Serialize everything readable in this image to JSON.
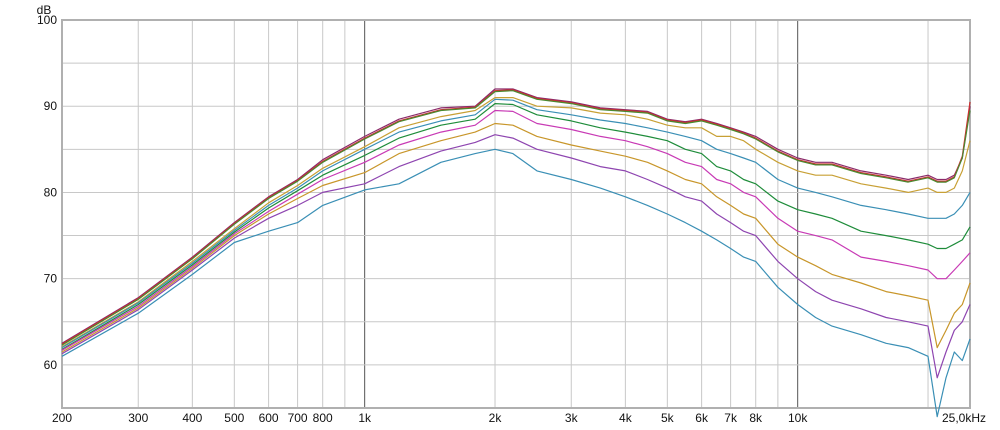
{
  "chart_data": {
    "type": "line",
    "title": "",
    "ylabel": "dB",
    "xlabel": "",
    "x_scale": "log",
    "xlim": [
      200,
      25000
    ],
    "ylim": [
      55,
      100
    ],
    "grid": true,
    "x_ticks": [
      {
        "value": 200,
        "label": "200"
      },
      {
        "value": 300,
        "label": "300"
      },
      {
        "value": 400,
        "label": "400"
      },
      {
        "value": 500,
        "label": "500"
      },
      {
        "value": 600,
        "label": "600"
      },
      {
        "value": 700,
        "label": "700"
      },
      {
        "value": 800,
        "label": "800"
      },
      {
        "value": 1000,
        "label": "1k"
      },
      {
        "value": 2000,
        "label": "2k"
      },
      {
        "value": 3000,
        "label": "3k"
      },
      {
        "value": 4000,
        "label": "4k"
      },
      {
        "value": 5000,
        "label": "5k"
      },
      {
        "value": 6000,
        "label": "6k"
      },
      {
        "value": 7000,
        "label": "7k"
      },
      {
        "value": 8000,
        "label": "8k"
      },
      {
        "value": 10000,
        "label": "10k"
      },
      {
        "value": 25000,
        "label": "25,0kHz"
      }
    ],
    "major_x_lines": [
      1000,
      10000
    ],
    "y_ticks": [
      {
        "value": 100,
        "label": "100"
      },
      {
        "value": 90,
        "label": "90"
      },
      {
        "value": 80,
        "label": "80"
      },
      {
        "value": 70,
        "label": "70"
      },
      {
        "value": 60,
        "label": "60"
      }
    ],
    "x": [
      200,
      300,
      400,
      500,
      600,
      700,
      800,
      1000,
      1200,
      1500,
      1800,
      2000,
      2200,
      2500,
      3000,
      3500,
      4000,
      4500,
      5000,
      5500,
      6000,
      6500,
      7000,
      7500,
      8000,
      9000,
      10000,
      11000,
      12000,
      14000,
      16000,
      18000,
      20000,
      21000,
      22000,
      23000,
      24000,
      25000
    ],
    "series": [
      {
        "color": "#8b2a6a",
        "values": [
          62.5,
          67.8,
          72.5,
          76.5,
          79.5,
          81.5,
          83.8,
          86.5,
          88.5,
          89.8,
          90.0,
          92.0,
          92.0,
          91.0,
          90.5,
          89.8,
          89.6,
          89.4,
          88.5,
          88.2,
          88.5,
          88.0,
          87.5,
          87.0,
          86.5,
          85.0,
          84.0,
          83.5,
          83.5,
          82.5,
          82.0,
          81.5,
          82.0,
          81.5,
          81.5,
          82.0,
          84.0,
          90.0
        ]
      },
      {
        "color": "#cc2f2f",
        "values": [
          62.4,
          67.7,
          72.4,
          76.4,
          79.4,
          81.4,
          83.6,
          86.3,
          88.3,
          89.6,
          89.9,
          91.8,
          91.9,
          90.9,
          90.4,
          89.7,
          89.5,
          89.3,
          88.4,
          88.1,
          88.4,
          87.9,
          87.4,
          86.9,
          86.3,
          84.8,
          83.8,
          83.3,
          83.3,
          82.3,
          81.8,
          81.3,
          81.8,
          81.3,
          81.3,
          81.8,
          84.2,
          90.5
        ]
      },
      {
        "color": "#4a8a30",
        "values": [
          62.3,
          67.6,
          72.3,
          76.3,
          79.3,
          81.3,
          83.5,
          86.2,
          88.2,
          89.5,
          89.8,
          91.7,
          91.8,
          90.8,
          90.3,
          89.6,
          89.4,
          89.2,
          88.3,
          88.0,
          88.3,
          87.8,
          87.3,
          86.8,
          86.2,
          84.7,
          83.7,
          83.2,
          83.2,
          82.2,
          81.7,
          81.2,
          81.7,
          81.2,
          81.2,
          81.7,
          84.0,
          89.5
        ]
      },
      {
        "color": "#c8a035",
        "values": [
          62.1,
          67.3,
          72.0,
          75.8,
          78.8,
          80.8,
          82.8,
          85.3,
          87.5,
          88.8,
          89.5,
          91.0,
          91.0,
          90.0,
          89.8,
          89.2,
          89.0,
          88.5,
          87.8,
          87.5,
          87.5,
          86.5,
          86.5,
          86.0,
          85.0,
          83.5,
          82.5,
          82.0,
          82.0,
          81.0,
          80.5,
          80.0,
          80.5,
          80.0,
          80.0,
          80.5,
          82.5,
          86.0
        ]
      },
      {
        "color": "#3a8fb5",
        "values": [
          62.0,
          67.2,
          71.8,
          75.6,
          78.5,
          80.5,
          82.5,
          85.0,
          87.0,
          88.3,
          89.0,
          90.8,
          90.7,
          89.6,
          89.0,
          88.4,
          88.0,
          87.5,
          87.0,
          86.5,
          86.0,
          85.0,
          84.5,
          84.0,
          83.5,
          81.5,
          80.5,
          80.0,
          79.5,
          78.5,
          78.0,
          77.5,
          77.0,
          77.0,
          77.0,
          77.5,
          78.5,
          80.0
        ]
      },
      {
        "color": "#1e8c3a",
        "values": [
          61.8,
          67.0,
          71.6,
          75.4,
          78.2,
          80.2,
          82.0,
          84.3,
          86.3,
          87.8,
          88.5,
          90.3,
          90.2,
          89.0,
          88.3,
          87.5,
          87.0,
          86.5,
          86.0,
          85.0,
          84.5,
          83.0,
          82.5,
          81.5,
          81.0,
          79.0,
          78.0,
          77.5,
          77.0,
          75.5,
          75.0,
          74.5,
          74.0,
          73.5,
          73.5,
          74.0,
          74.5,
          76.0
        ]
      },
      {
        "color": "#c83ab5",
        "values": [
          61.7,
          66.8,
          71.4,
          75.2,
          77.8,
          79.8,
          81.5,
          83.5,
          85.5,
          87.0,
          87.8,
          89.5,
          89.4,
          88.0,
          87.3,
          86.5,
          86.0,
          85.3,
          84.5,
          83.5,
          83.0,
          81.5,
          81.0,
          80.0,
          79.5,
          77.0,
          75.5,
          75.0,
          74.5,
          72.5,
          72.0,
          71.5,
          71.0,
          70.0,
          70.0,
          71.0,
          72.0,
          73.0
        ]
      },
      {
        "color": "#c8962a",
        "values": [
          61.5,
          66.6,
          71.2,
          75.0,
          77.5,
          79.3,
          80.8,
          82.3,
          84.5,
          86.0,
          87.0,
          88.0,
          87.8,
          86.5,
          85.5,
          84.8,
          84.2,
          83.5,
          82.5,
          81.5,
          81.0,
          79.5,
          78.5,
          77.5,
          77.0,
          74.0,
          72.5,
          71.5,
          70.5,
          69.5,
          68.5,
          68.0,
          67.5,
          62.0,
          64.0,
          66.0,
          67.0,
          69.5
        ]
      },
      {
        "color": "#8e45b0",
        "values": [
          61.3,
          66.4,
          71.0,
          74.7,
          77.0,
          78.5,
          80.0,
          81.0,
          83.0,
          84.8,
          85.8,
          86.7,
          86.3,
          85.0,
          84.0,
          83.0,
          82.5,
          81.5,
          80.5,
          79.5,
          79.0,
          77.5,
          76.5,
          75.5,
          75.0,
          72.0,
          70.0,
          68.5,
          67.5,
          66.5,
          65.5,
          65.0,
          64.5,
          58.5,
          61.5,
          64.0,
          65.0,
          67.0
        ]
      },
      {
        "color": "#3a8fb5",
        "values": [
          61.0,
          66.0,
          70.5,
          74.2,
          75.5,
          76.5,
          78.5,
          80.3,
          81.0,
          83.5,
          84.5,
          85.0,
          84.5,
          82.5,
          81.5,
          80.5,
          79.5,
          78.5,
          77.5,
          76.5,
          75.5,
          74.5,
          73.5,
          72.5,
          72.0,
          69.0,
          67.0,
          65.5,
          64.5,
          63.5,
          62.5,
          62.0,
          61.0,
          54.0,
          58.5,
          61.5,
          60.5,
          63.0
        ]
      }
    ]
  }
}
